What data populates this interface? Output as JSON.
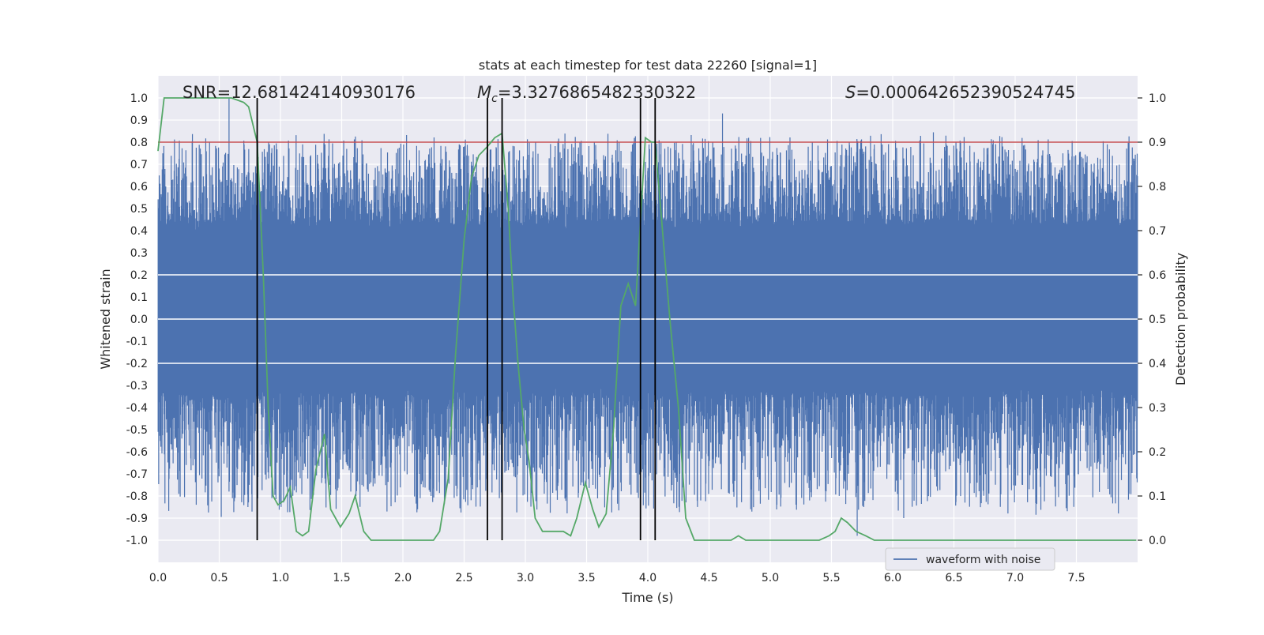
{
  "chart_data": {
    "type": "line",
    "title": "stats at each timestep for test data 22260 [signal=1]",
    "xlabel": "Time (s)",
    "ylabel": "Whitened strain",
    "y2label": "Detection probability",
    "xlim": [
      0.0,
      8.0
    ],
    "ylim": [
      -1.1,
      1.1
    ],
    "y2lim": [
      -0.05,
      1.05
    ],
    "xticks": [
      "0.0",
      "0.5",
      "1.0",
      "1.5",
      "2.0",
      "2.5",
      "3.0",
      "3.5",
      "4.0",
      "4.5",
      "5.0",
      "5.5",
      "6.0",
      "6.5",
      "7.0",
      "7.5"
    ],
    "yticks": [
      "1.0",
      "0.9",
      "0.8",
      "0.7",
      "0.6",
      "0.5",
      "0.4",
      "0.3",
      "0.2",
      "0.1",
      "0.0",
      "-0.1",
      "-0.2",
      "-0.3",
      "-0.4",
      "-0.5",
      "-0.6",
      "-0.7",
      "-0.8",
      "-0.9",
      "-1.0"
    ],
    "y2ticks": [
      "1.0",
      "0.9",
      "0.8",
      "0.7",
      "0.6",
      "0.5",
      "0.4",
      "0.3",
      "0.2",
      "0.1",
      "0.0"
    ],
    "annotations": {
      "snr": "SNR=12.681424140930176",
      "mc_symbol": "M",
      "mc_sub": "c",
      "mc_value": "=3.3276865482330322",
      "s_symbol": "S",
      "s_value": "=0.000642652390524745"
    },
    "legend": {
      "label": "waveform with noise",
      "placement": "lower-center-right"
    },
    "threshold": 0.9,
    "vertical_lines": [
      0.81,
      2.69,
      2.81,
      3.94,
      4.06
    ],
    "series": [
      {
        "name": "waveform with noise",
        "color": "#4c72b0",
        "style": "dense-noise",
        "core_band": [
          -0.3,
          0.4
        ],
        "max_envelope": 0.8,
        "min_envelope": -0.85,
        "spikes": [
          {
            "t": 0.58,
            "v": 1.0
          },
          {
            "t": 0.58,
            "v": -0.78
          },
          {
            "t": 0.17,
            "v": -0.79
          },
          {
            "t": 0.31,
            "v": -0.71
          },
          {
            "t": 1.87,
            "v": -0.87
          },
          {
            "t": 2.12,
            "v": -0.86
          },
          {
            "t": 2.46,
            "v": 0.79
          },
          {
            "t": 4.61,
            "v": 0.93
          },
          {
            "t": 4.84,
            "v": -0.86
          },
          {
            "t": 5.71,
            "v": -0.98
          },
          {
            "t": 6.09,
            "v": -0.9
          },
          {
            "t": 6.59,
            "v": -0.83
          },
          {
            "t": 7.93,
            "v": -0.79
          }
        ]
      },
      {
        "name": "detection probability",
        "color": "#55a868",
        "axis": "right",
        "x": [
          0.0,
          0.05,
          0.12,
          0.2,
          0.3,
          0.5,
          0.6,
          0.7,
          0.74,
          0.81,
          0.86,
          0.9,
          0.94,
          0.98,
          1.03,
          1.08,
          1.13,
          1.18,
          1.23,
          1.29,
          1.36,
          1.41,
          1.49,
          1.56,
          1.61,
          1.68,
          1.74,
          1.81,
          1.87,
          1.93,
          2.0,
          2.06,
          2.12,
          2.18,
          2.25,
          2.3,
          2.37,
          2.43,
          2.5,
          2.56,
          2.62,
          2.69,
          2.75,
          2.81,
          2.86,
          2.9,
          2.94,
          2.99,
          3.03,
          3.08,
          3.14,
          3.19,
          3.25,
          3.31,
          3.37,
          3.42,
          3.49,
          3.55,
          3.6,
          3.66,
          3.72,
          3.78,
          3.84,
          3.9,
          3.94,
          3.98,
          4.03,
          4.06,
          4.12,
          4.18,
          4.25,
          4.31,
          4.38,
          4.45,
          4.52,
          4.6,
          4.68,
          4.74,
          4.8,
          4.87,
          4.94,
          5.0,
          5.1,
          5.2,
          5.3,
          5.4,
          5.48,
          5.53,
          5.58,
          5.63,
          5.7,
          5.78,
          5.85,
          5.95,
          6.1,
          6.3,
          6.45,
          6.6,
          6.8,
          7.0,
          7.2,
          7.5,
          7.99
        ],
        "y": [
          0.88,
          1.0,
          1.0,
          1.0,
          1.0,
          1.0,
          1.0,
          0.99,
          0.98,
          0.9,
          0.6,
          0.3,
          0.1,
          0.08,
          0.09,
          0.12,
          0.02,
          0.01,
          0.02,
          0.16,
          0.24,
          0.07,
          0.03,
          0.06,
          0.1,
          0.02,
          0.0,
          0.0,
          0.0,
          0.0,
          0.0,
          0.0,
          0.0,
          0.0,
          0.0,
          0.02,
          0.14,
          0.42,
          0.68,
          0.82,
          0.87,
          0.89,
          0.91,
          0.92,
          0.75,
          0.55,
          0.4,
          0.25,
          0.18,
          0.05,
          0.02,
          0.02,
          0.02,
          0.02,
          0.01,
          0.05,
          0.13,
          0.07,
          0.03,
          0.06,
          0.25,
          0.53,
          0.58,
          0.53,
          0.72,
          0.91,
          0.9,
          0.9,
          0.7,
          0.5,
          0.3,
          0.05,
          0.0,
          0.0,
          0.0,
          0.0,
          0.0,
          0.01,
          0.0,
          0.0,
          0.0,
          0.0,
          0.0,
          0.0,
          0.0,
          0.0,
          0.01,
          0.02,
          0.05,
          0.04,
          0.02,
          0.01,
          0.0,
          0.0,
          0.0,
          0.0,
          0.0,
          0.0,
          0.0,
          0.0,
          0.0,
          0.0,
          0.0
        ]
      }
    ]
  }
}
